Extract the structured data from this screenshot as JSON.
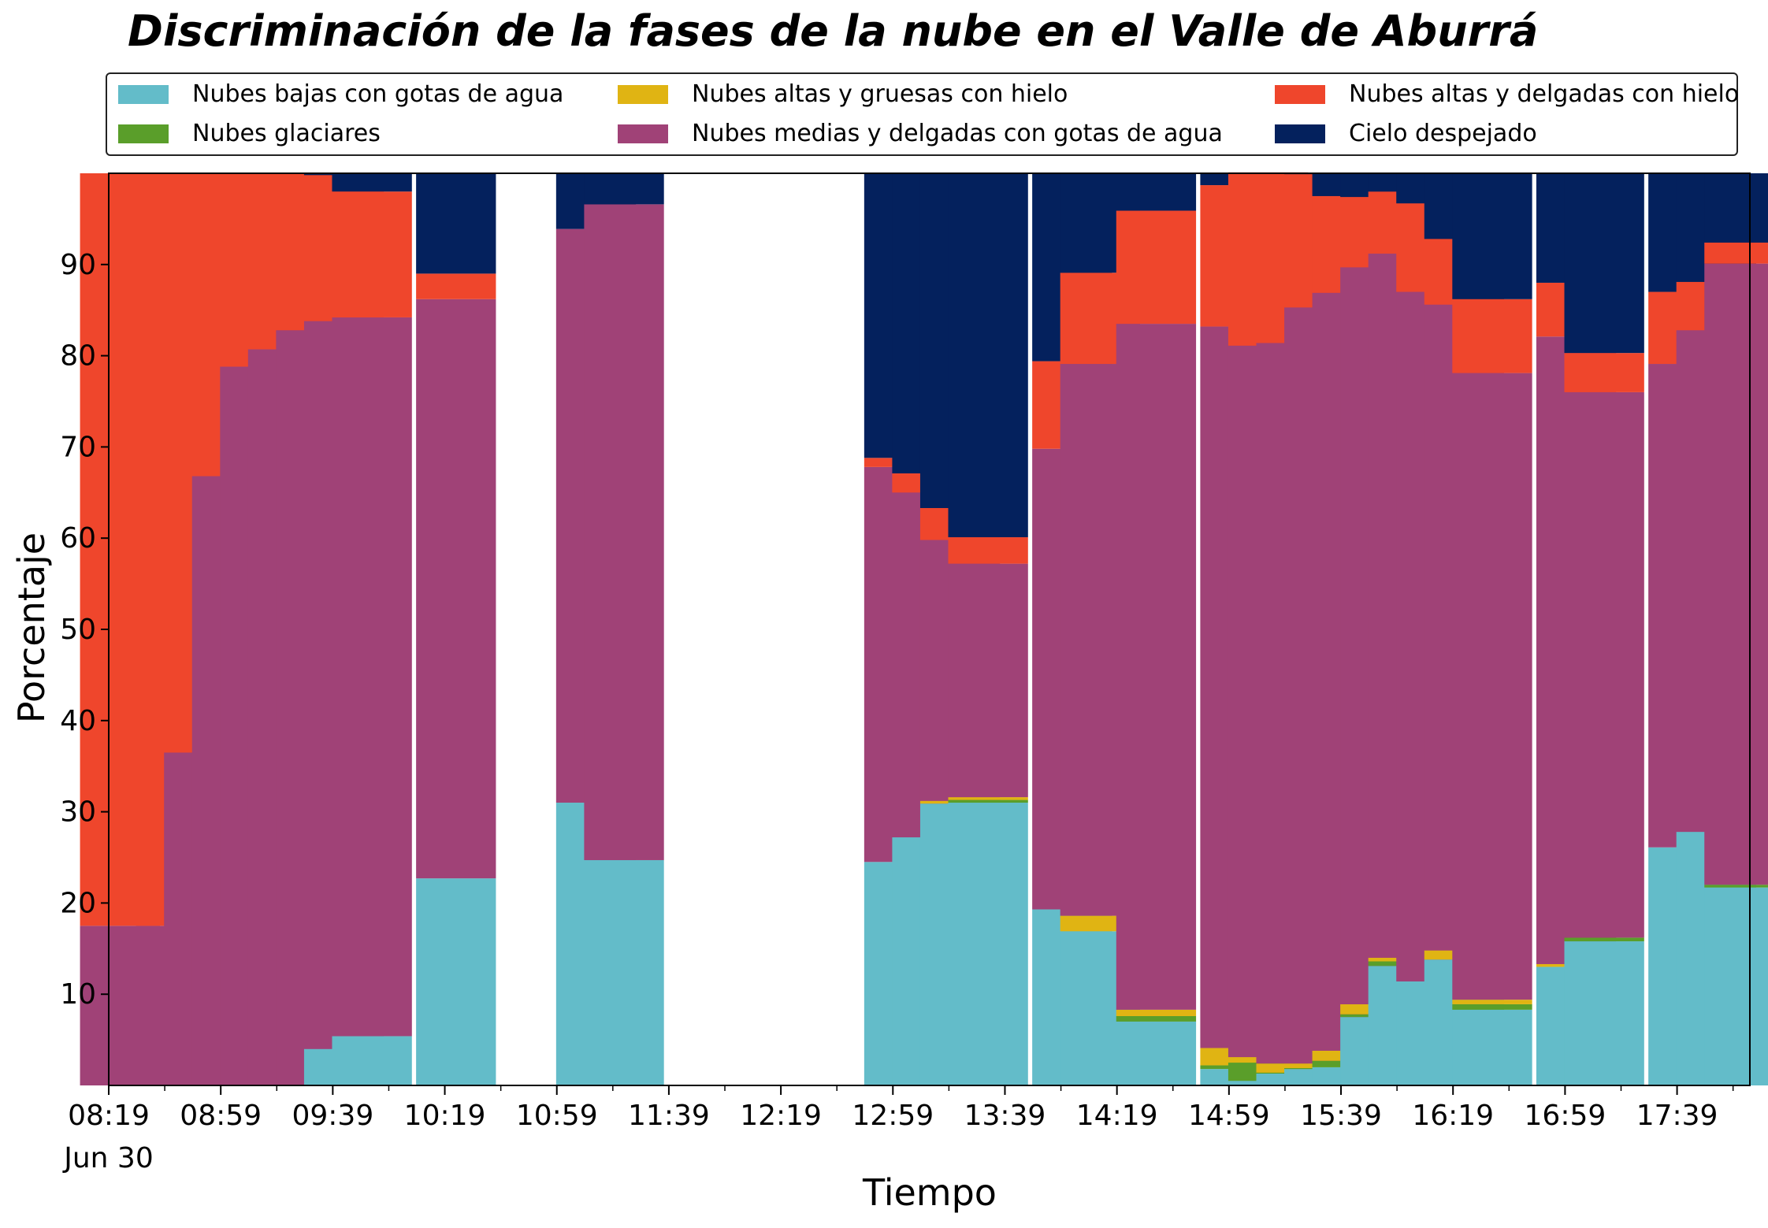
{
  "chart_data": {
    "type": "bar",
    "stacked": true,
    "title": "Discriminación de la fases de la nube en el Valle de Aburrá",
    "xlabel": "Tiempo",
    "ylabel": "Porcentaje",
    "ylim": [
      0,
      100
    ],
    "xlim": [
      "08:19",
      "18:05"
    ],
    "legend_position": "top",
    "yticks": [
      10,
      20,
      30,
      40,
      50,
      60,
      70,
      80,
      90
    ],
    "xticks": [
      "08:19",
      "08:59",
      "09:39",
      "10:19",
      "10:59",
      "11:39",
      "12:19",
      "12:59",
      "13:39",
      "14:19",
      "14:59",
      "15:39",
      "16:19",
      "16:59",
      "17:39"
    ],
    "xtick_sublabel": "Jun 30",
    "series": [
      {
        "name": "Nubes bajas con gotas de agua",
        "color": "#63bcc9"
      },
      {
        "name": "Nubes glaciares",
        "color": "#5a9e2a"
      },
      {
        "name": "Nubes altas y gruesas con hielo",
        "color": "#e0b413"
      },
      {
        "name": "Nubes medias y delgadas con gotas de agua",
        "color": "#a04277"
      },
      {
        "name": "Nubes altas y delgadas con hielo",
        "color": "#ef462c"
      },
      {
        "name": "Cielo despejado",
        "color": "#04215d"
      }
    ],
    "bars": [
      {
        "time": "08:23",
        "values": [
          0,
          0,
          0,
          17.5,
          82.5,
          0
        ]
      },
      {
        "time": "08:43",
        "values": [
          0,
          0,
          0,
          17.5,
          82.5,
          0
        ]
      },
      {
        "time": "08:53",
        "values": [
          0,
          0,
          0,
          36.5,
          63.5,
          0
        ]
      },
      {
        "time": "09:03",
        "values": [
          0,
          0,
          0,
          66.8,
          33.2,
          0
        ]
      },
      {
        "time": "09:13",
        "values": [
          0,
          0,
          0,
          78.8,
          21.2,
          0
        ]
      },
      {
        "time": "09:23",
        "values": [
          0,
          0,
          0,
          80.7,
          19.3,
          0
        ]
      },
      {
        "time": "09:33",
        "values": [
          0,
          0,
          0,
          82.8,
          17.2,
          0
        ]
      },
      {
        "time": "09:43",
        "values": [
          4.0,
          0,
          0,
          79.8,
          16.0,
          0.2
        ]
      },
      {
        "time": "09:53",
        "values": [
          5.4,
          0,
          0,
          78.8,
          13.8,
          2.0
        ]
      },
      {
        "time": "10:23",
        "values": [
          22.7,
          0,
          0,
          63.5,
          2.8,
          11.0
        ]
      },
      {
        "time": "11:13",
        "values": [
          31.0,
          0,
          0,
          62.9,
          0,
          6.1
        ]
      },
      {
        "time": "11:23",
        "values": [
          24.7,
          0,
          0,
          71.9,
          0,
          3.4
        ]
      },
      {
        "time": "13:03",
        "values": [
          24.5,
          0,
          0,
          43.3,
          1.0,
          31.2
        ]
      },
      {
        "time": "13:13",
        "values": [
          27.2,
          0,
          0,
          37.8,
          2.1,
          32.9
        ]
      },
      {
        "time": "13:23",
        "values": [
          30.9,
          0,
          0.3,
          28.6,
          3.5,
          36.7
        ]
      },
      {
        "time": "13:33",
        "values": [
          31.0,
          0.3,
          0.3,
          25.6,
          2.9,
          39.9
        ]
      },
      {
        "time": "14:03",
        "values": [
          19.3,
          0,
          0,
          50.5,
          9.6,
          20.6
        ]
      },
      {
        "time": "14:13",
        "values": [
          16.9,
          0,
          1.7,
          60.5,
          10.0,
          10.9
        ]
      },
      {
        "time": "14:33",
        "values": [
          7.0,
          0.6,
          0.7,
          75.2,
          12.4,
          4.1
        ]
      },
      {
        "time": "15:03",
        "values": [
          1.8,
          0.4,
          1.9,
          79.1,
          15.5,
          1.3
        ]
      },
      {
        "time": "15:13",
        "values": [
          0.5,
          2.0,
          0.6,
          78.0,
          19.0,
          0
        ]
      },
      {
        "time": "15:23",
        "values": [
          1.3,
          0.1,
          1.0,
          79.0,
          18.6,
          0
        ]
      },
      {
        "time": "15:33",
        "values": [
          1.8,
          0.1,
          0.5,
          82.9,
          14.6,
          0.1
        ]
      },
      {
        "time": "15:43",
        "values": [
          2.0,
          0.7,
          1.1,
          83.1,
          10.6,
          2.5
        ]
      },
      {
        "time": "15:53",
        "values": [
          7.5,
          0.3,
          1.1,
          80.8,
          7.7,
          2.6
        ]
      },
      {
        "time": "16:03",
        "values": [
          13.1,
          0.5,
          0.4,
          77.2,
          6.8,
          2.0
        ]
      },
      {
        "time": "16:13",
        "values": [
          11.4,
          0,
          0,
          75.6,
          9.7,
          3.3
        ]
      },
      {
        "time": "16:23",
        "values": [
          13.8,
          0,
          1.0,
          70.8,
          7.2,
          7.2
        ]
      },
      {
        "time": "16:33",
        "values": [
          8.3,
          0.6,
          0.5,
          68.7,
          8.1,
          13.8
        ]
      },
      {
        "time": "17:03",
        "values": [
          13.0,
          0,
          0.3,
          68.8,
          5.9,
          12.0
        ]
      },
      {
        "time": "17:13",
        "values": [
          15.8,
          0.4,
          0,
          59.8,
          4.3,
          19.7
        ]
      },
      {
        "time": "17:43",
        "values": [
          26.1,
          0,
          0,
          53.0,
          7.9,
          13.0
        ]
      },
      {
        "time": "17:53",
        "values": [
          27.8,
          0,
          0,
          55.0,
          5.3,
          11.9
        ]
      },
      {
        "time": "18:03",
        "values": [
          21.7,
          0.3,
          0,
          68.1,
          2.3,
          7.6
        ]
      }
    ]
  }
}
